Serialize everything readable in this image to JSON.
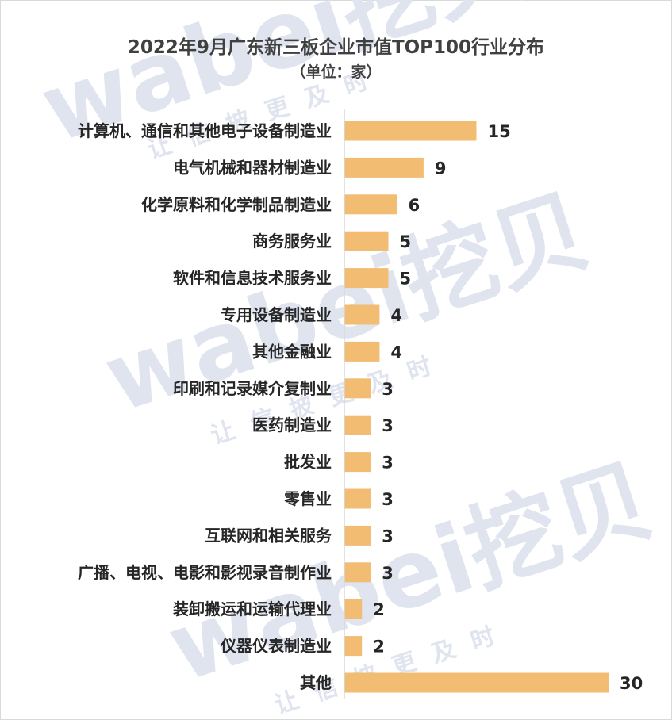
{
  "chart_data": {
    "type": "bar",
    "orientation": "horizontal",
    "title": "2022年9月广东新三板企业市值TOP100行业分布",
    "subtitle": "（单位：家）",
    "categories": [
      "计算机、通信和其他电子设备制造业",
      "电气机械和器材制造业",
      "化学原料和化学制品制造业",
      "商务服务业",
      "软件和信息技术服务业",
      "专用设备制造业",
      "其他金融业",
      "印刷和记录媒介复制业",
      "医药制造业",
      "批发业",
      "零售业",
      "互联网和相关服务",
      "广播、电视、电影和影视录音制作业",
      "装卸搬运和运输代理业",
      "仪器仪表制造业",
      "其他"
    ],
    "values": [
      15,
      9,
      6,
      5,
      5,
      4,
      4,
      3,
      3,
      3,
      3,
      3,
      3,
      2,
      2,
      30
    ],
    "xlim": [
      0,
      30
    ],
    "grid": false,
    "bar_color": "#f2bd73",
    "axis_color": "#d9d9d9"
  },
  "watermark": {
    "brand": "wabei挖贝",
    "slogan": "让信披更及时",
    "color": "#dfe4ef"
  }
}
